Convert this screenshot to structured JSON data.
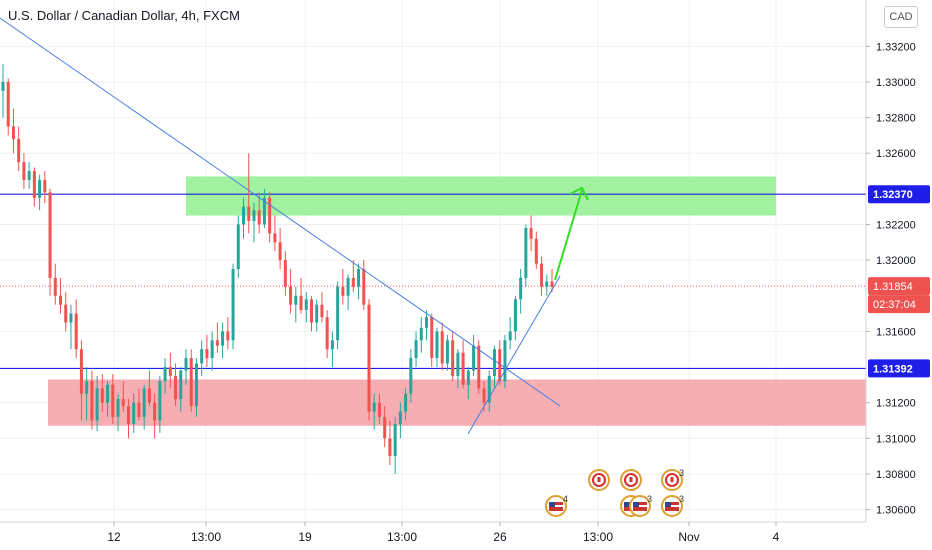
{
  "header": {
    "title": "U.S. Dollar / Canadian Dollar, 4h, FXCM",
    "currency_button": "CAD"
  },
  "chart_data": {
    "type": "candlestick",
    "ylim": [
      1.3053,
      1.3346
    ],
    "y_ticks": [
      "1.33200",
      "1.33000",
      "1.32800",
      "1.32600",
      "1.32200",
      "1.32000",
      "1.31600",
      "1.31200",
      "1.31000",
      "1.30800",
      "1.30600"
    ],
    "x_ticks": [
      "12",
      "13:00",
      "19",
      "13:00",
      "26",
      "13:00",
      "Nov",
      "4"
    ],
    "price_labels": [
      {
        "text": "1.32370",
        "color": "#1e1ee8"
      },
      {
        "text": "1.31854",
        "color": "#ef5350"
      },
      {
        "text": "02:37:04",
        "color": "#ef5350"
      },
      {
        "text": "1.31392",
        "color": "#1e1ee8"
      }
    ],
    "levels": {
      "resistance_line": 1.3237,
      "support_line": 1.31392,
      "last_price": 1.31854
    },
    "zones": [
      {
        "name": "resistance-zone",
        "from": 1.3225,
        "to": 1.3247,
        "color": "#90ee90"
      },
      {
        "name": "support-zone",
        "from": 1.3107,
        "to": 1.3133,
        "color": "#f4a0a4"
      }
    ],
    "colors": {
      "up": "#26a69a",
      "down": "#ef5350",
      "trendline": "#4a7fe0",
      "arrow": "#33dd22"
    },
    "events": [
      {
        "country": "CA",
        "count": ""
      },
      {
        "country": "CA",
        "count": ""
      },
      {
        "country": "CA",
        "count": "3"
      },
      {
        "country": "US",
        "count": "4"
      },
      {
        "country": "US",
        "count": "4"
      },
      {
        "country": "US",
        "count": "3"
      },
      {
        "country": "US",
        "count": "3"
      }
    ],
    "candles": [
      [
        1.3295,
        1.331,
        1.328,
        1.33
      ],
      [
        1.33,
        1.3302,
        1.327,
        1.3275
      ],
      [
        1.3275,
        1.3285,
        1.326,
        1.3268
      ],
      [
        1.3268,
        1.3275,
        1.325,
        1.3255
      ],
      [
        1.3255,
        1.326,
        1.324,
        1.3245
      ],
      [
        1.3245,
        1.3255,
        1.324,
        1.325
      ],
      [
        1.325,
        1.3252,
        1.323,
        1.3235
      ],
      [
        1.3235,
        1.3248,
        1.3228,
        1.3245
      ],
      [
        1.3245,
        1.325,
        1.3232,
        1.3238
      ],
      [
        1.3238,
        1.324,
        1.318,
        1.319
      ],
      [
        1.319,
        1.3198,
        1.3175,
        1.318
      ],
      [
        1.318,
        1.319,
        1.317,
        1.3175
      ],
      [
        1.3175,
        1.3182,
        1.316,
        1.3165
      ],
      [
        1.3165,
        1.3175,
        1.315,
        1.317
      ],
      [
        1.317,
        1.3178,
        1.3145,
        1.315
      ],
      [
        1.315,
        1.3155,
        1.311,
        1.3125
      ],
      [
        1.3125,
        1.314,
        1.311,
        1.3132
      ],
      [
        1.3132,
        1.3138,
        1.3105,
        1.311
      ],
      [
        1.311,
        1.3135,
        1.3104,
        1.3128
      ],
      [
        1.3128,
        1.3136,
        1.3115,
        1.312
      ],
      [
        1.312,
        1.3132,
        1.3112,
        1.313
      ],
      [
        1.313,
        1.3136,
        1.3108,
        1.3112
      ],
      [
        1.3112,
        1.3125,
        1.3104,
        1.3122
      ],
      [
        1.3122,
        1.3132,
        1.3115,
        1.3118
      ],
      [
        1.3118,
        1.3122,
        1.31,
        1.3108
      ],
      [
        1.3108,
        1.3125,
        1.3103,
        1.312
      ],
      [
        1.312,
        1.3128,
        1.311,
        1.3112
      ],
      [
        1.3112,
        1.313,
        1.3105,
        1.3128
      ],
      [
        1.3128,
        1.3138,
        1.3118,
        1.312
      ],
      [
        1.312,
        1.3125,
        1.31,
        1.311
      ],
      [
        1.311,
        1.3135,
        1.3103,
        1.3132
      ],
      [
        1.3132,
        1.3145,
        1.3125,
        1.314
      ],
      [
        1.314,
        1.3148,
        1.3128,
        1.3135
      ],
      [
        1.3135,
        1.3142,
        1.3118,
        1.3122
      ],
      [
        1.3122,
        1.314,
        1.3115,
        1.3138
      ],
      [
        1.3138,
        1.315,
        1.313,
        1.3145
      ],
      [
        1.3145,
        1.315,
        1.3115,
        1.3118
      ],
      [
        1.3118,
        1.3145,
        1.3112,
        1.3142
      ],
      [
        1.3142,
        1.3155,
        1.3135,
        1.315
      ],
      [
        1.315,
        1.3158,
        1.314,
        1.3145
      ],
      [
        1.3145,
        1.316,
        1.3138,
        1.3155
      ],
      [
        1.3155,
        1.3165,
        1.3148,
        1.3152
      ],
      [
        1.3152,
        1.3165,
        1.3145,
        1.316
      ],
      [
        1.316,
        1.3168,
        1.315,
        1.3155
      ],
      [
        1.3155,
        1.3198,
        1.315,
        1.3195
      ],
      [
        1.3195,
        1.3225,
        1.319,
        1.322
      ],
      [
        1.322,
        1.3235,
        1.3212,
        1.323
      ],
      [
        1.323,
        1.326,
        1.3215,
        1.3222
      ],
      [
        1.3222,
        1.3232,
        1.321,
        1.3228
      ],
      [
        1.3228,
        1.3238,
        1.3215,
        1.322
      ],
      [
        1.322,
        1.324,
        1.3218,
        1.3235
      ],
      [
        1.3235,
        1.3238,
        1.321,
        1.3215
      ],
      [
        1.3215,
        1.3225,
        1.3205,
        1.321
      ],
      [
        1.321,
        1.3218,
        1.3195,
        1.32
      ],
      [
        1.32,
        1.3205,
        1.318,
        1.3185
      ],
      [
        1.3185,
        1.3195,
        1.317,
        1.3175
      ],
      [
        1.3175,
        1.3185,
        1.3165,
        1.318
      ],
      [
        1.318,
        1.319,
        1.317,
        1.3172
      ],
      [
        1.3172,
        1.3182,
        1.3165,
        1.3178
      ],
      [
        1.3178,
        1.318,
        1.316,
        1.3165
      ],
      [
        1.3165,
        1.3178,
        1.316,
        1.3175
      ],
      [
        1.3175,
        1.3182,
        1.3165,
        1.3168
      ],
      [
        1.3168,
        1.3172,
        1.3145,
        1.315
      ],
      [
        1.315,
        1.316,
        1.314,
        1.3155
      ],
      [
        1.3155,
        1.3188,
        1.315,
        1.3185
      ],
      [
        1.3185,
        1.3195,
        1.3175,
        1.318
      ],
      [
        1.318,
        1.3192,
        1.3172,
        1.319
      ],
      [
        1.319,
        1.32,
        1.3182,
        1.3185
      ],
      [
        1.3185,
        1.3198,
        1.3178,
        1.3195
      ],
      [
        1.3195,
        1.32,
        1.3172,
        1.3175
      ],
      [
        1.3175,
        1.3178,
        1.311,
        1.3115
      ],
      [
        1.3115,
        1.3125,
        1.3105,
        1.312
      ],
      [
        1.312,
        1.3125,
        1.3108,
        1.3112
      ],
      [
        1.3112,
        1.3118,
        1.3095,
        1.31
      ],
      [
        1.31,
        1.311,
        1.3085,
        1.309
      ],
      [
        1.309,
        1.3112,
        1.308,
        1.3108
      ],
      [
        1.3108,
        1.312,
        1.31,
        1.3115
      ],
      [
        1.3115,
        1.3128,
        1.311,
        1.3125
      ],
      [
        1.3125,
        1.315,
        1.312,
        1.3145
      ],
      [
        1.3145,
        1.316,
        1.314,
        1.3155
      ],
      [
        1.3155,
        1.3168,
        1.3148,
        1.3162
      ],
      [
        1.3162,
        1.3172,
        1.3155,
        1.3168
      ],
      [
        1.3168,
        1.317,
        1.314,
        1.3145
      ],
      [
        1.3145,
        1.3162,
        1.314,
        1.316
      ],
      [
        1.316,
        1.3165,
        1.3138,
        1.3142
      ],
      [
        1.3142,
        1.3158,
        1.3138,
        1.3155
      ],
      [
        1.3155,
        1.316,
        1.3132,
        1.3135
      ],
      [
        1.3135,
        1.315,
        1.3128,
        1.3148
      ],
      [
        1.3148,
        1.3155,
        1.3128,
        1.313
      ],
      [
        1.313,
        1.314,
        1.3122,
        1.3138
      ],
      [
        1.3138,
        1.3158,
        1.3135,
        1.3152
      ],
      [
        1.3152,
        1.3155,
        1.3125,
        1.3128
      ],
      [
        1.3128,
        1.3132,
        1.3115,
        1.312
      ],
      [
        1.312,
        1.3138,
        1.3115,
        1.3135
      ],
      [
        1.3135,
        1.3152,
        1.3128,
        1.315
      ],
      [
        1.315,
        1.3155,
        1.313,
        1.3132
      ],
      [
        1.3132,
        1.3158,
        1.3128,
        1.3155
      ],
      [
        1.3155,
        1.3168,
        1.315,
        1.316
      ],
      [
        1.316,
        1.318,
        1.3155,
        1.3178
      ],
      [
        1.3178,
        1.3195,
        1.317,
        1.319
      ],
      [
        1.319,
        1.322,
        1.3185,
        1.3218
      ],
      [
        1.3218,
        1.3225,
        1.3205,
        1.3212
      ],
      [
        1.3212,
        1.3216,
        1.3195,
        1.3198
      ],
      [
        1.3198,
        1.3202,
        1.318,
        1.3185
      ],
      [
        1.3185,
        1.3192,
        1.318,
        1.3188
      ],
      [
        1.3188,
        1.3195,
        1.3182,
        1.3185
      ]
    ]
  }
}
